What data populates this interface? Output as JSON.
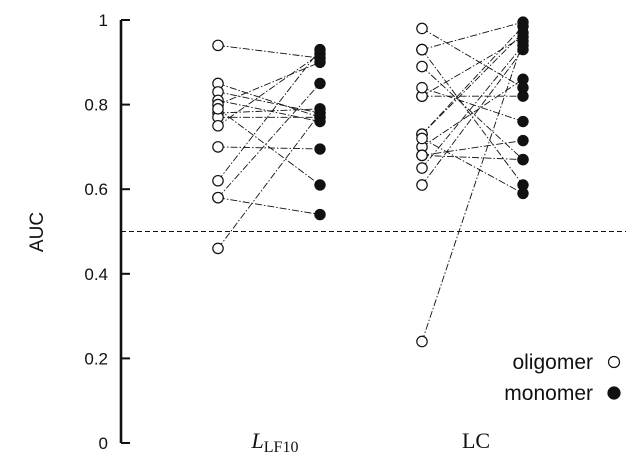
{
  "chart_data": {
    "type": "scatter",
    "ylabel": "AUC",
    "ylim": [
      0,
      1
    ],
    "yticks": [
      "0",
      "0.2",
      "0.4",
      "0.6",
      "0.8",
      "1"
    ],
    "ytick_values": [
      0,
      0.2,
      0.4,
      0.6,
      0.8,
      1
    ],
    "categories": [
      {
        "main": "L",
        "sub": "LF10"
      },
      {
        "main": "LC",
        "sub": ""
      }
    ],
    "reference_line": {
      "y": 0.5,
      "style": "dashed"
    },
    "legend": {
      "placement": "bottom-right",
      "items": [
        {
          "label": "oligomer",
          "marker": "open-circle"
        },
        {
          "label": "monomer",
          "marker": "filled-circle"
        }
      ]
    },
    "pairs": [
      {
        "category": "LLF10",
        "points": [
          [
            0.94,
            0.91
          ],
          [
            0.85,
            0.77
          ],
          [
            0.83,
            0.78
          ],
          [
            0.81,
            0.76
          ],
          [
            0.8,
            0.9
          ],
          [
            0.78,
            0.79
          ],
          [
            0.77,
            0.77
          ],
          [
            0.75,
            0.92
          ],
          [
            0.7,
            0.695
          ],
          [
            0.62,
            0.93
          ],
          [
            0.58,
            0.85
          ],
          [
            0.58,
            0.54
          ],
          [
            0.46,
            0.78
          ],
          [
            0.79,
            0.61
          ]
        ]
      },
      {
        "category": "LC",
        "points": [
          [
            0.98,
            0.84
          ],
          [
            0.93,
            0.995
          ],
          [
            0.93,
            0.61
          ],
          [
            0.89,
            0.67
          ],
          [
            0.82,
            0.82
          ],
          [
            0.82,
            0.96
          ],
          [
            0.73,
            0.985
          ],
          [
            0.73,
            0.97
          ],
          [
            0.7,
            0.86
          ],
          [
            0.68,
            0.67
          ],
          [
            0.68,
            0.715
          ],
          [
            0.65,
            0.94
          ],
          [
            0.61,
            0.93
          ],
          [
            0.24,
            0.95
          ],
          [
            0.72,
            0.59
          ],
          [
            0.84,
            0.76
          ]
        ]
      }
    ],
    "colors": {
      "axis": "#111111",
      "marker": "#111111",
      "background": "#ffffff"
    }
  }
}
